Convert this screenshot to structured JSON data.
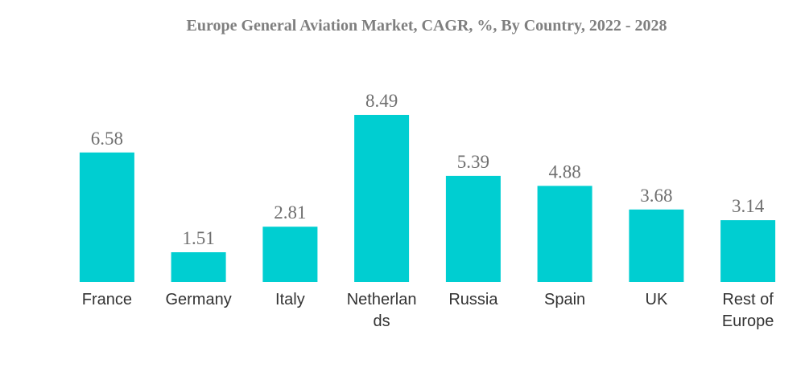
{
  "chart_data": {
    "type": "bar",
    "title": "Europe General Aviation Market, CAGR, %, By Country, 2022 - 2028",
    "categories": [
      "France",
      "Germany",
      "Italy",
      "Netherlands",
      "Russia",
      "Spain",
      "UK",
      "Rest of Europe"
    ],
    "category_label_lines": [
      [
        "France"
      ],
      [
        "Germany"
      ],
      [
        "Italy"
      ],
      [
        "Netherlan",
        "ds"
      ],
      [
        "Russia"
      ],
      [
        "Spain"
      ],
      [
        "UK"
      ],
      [
        "Rest of",
        "Europe"
      ]
    ],
    "values": [
      6.58,
      1.51,
      2.81,
      8.49,
      5.39,
      4.88,
      3.68,
      3.14
    ],
    "value_labels": [
      "6.58",
      "1.51",
      "2.81",
      "8.49",
      "5.39",
      "4.88",
      "3.68",
      "3.14"
    ],
    "xlabel": "",
    "ylabel": "",
    "ylim": [
      0,
      8.49
    ],
    "grid": false,
    "legend": "none",
    "bar_color": "#00CED1"
  }
}
